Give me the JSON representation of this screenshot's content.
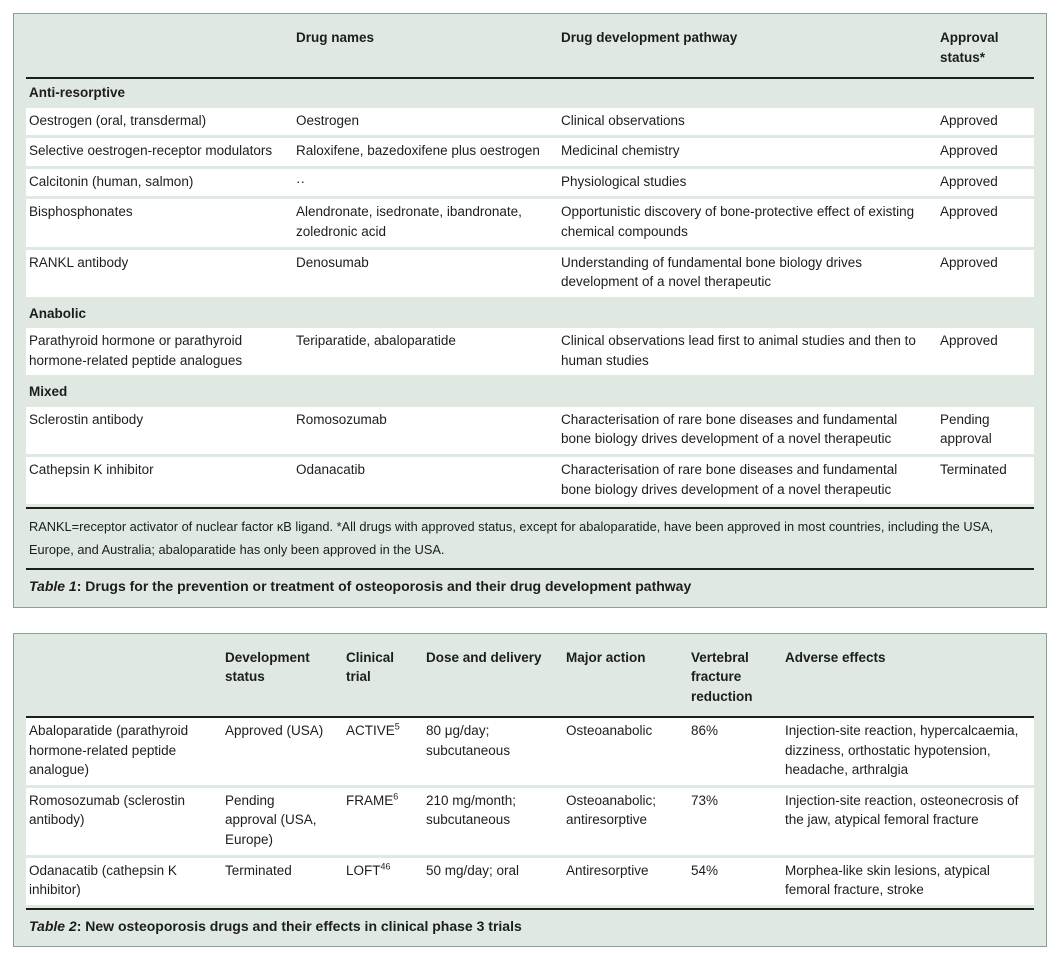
{
  "colors": {
    "panel_background": "#dfe9e2",
    "panel_border": "#8ba096",
    "row_background": "#ffffff",
    "rule": "#1d1d1b",
    "text": "#1d1d1b"
  },
  "table1": {
    "columns": [
      "",
      "Drug names",
      "Drug development pathway",
      "Approval status*"
    ],
    "sections": [
      {
        "title": "Anti-resorptive",
        "rows": [
          {
            "category": "Oestrogen (oral, transdermal)",
            "drugs": "Oestrogen",
            "pathway": "Clinical observations",
            "status": "Approved"
          },
          {
            "category": "Selective oestrogen-receptor modulators",
            "drugs": "Raloxifene, bazedoxifene plus oestrogen",
            "pathway": "Medicinal chemistry",
            "status": "Approved"
          },
          {
            "category": "Calcitonin (human, salmon)",
            "drugs": "··",
            "pathway": "Physiological studies",
            "status": "Approved"
          },
          {
            "category": "Bisphosphonates",
            "drugs": "Alendronate, isedronate, ibandronate, zoledronic acid",
            "pathway": "Opportunistic discovery of bone-protective effect of existing chemical compounds",
            "status": "Approved"
          },
          {
            "category": "RANKL antibody",
            "drugs": "Denosumab",
            "pathway": "Understanding of fundamental bone biology drives development of a novel therapeutic",
            "status": "Approved"
          }
        ]
      },
      {
        "title": "Anabolic",
        "rows": [
          {
            "category": "Parathyroid hormone or parathyroid hormone-related peptide analogues",
            "drugs": "Teriparatide, abaloparatide",
            "pathway": "Clinical observations lead first to animal studies and then to human studies",
            "status": "Approved"
          }
        ]
      },
      {
        "title": "Mixed",
        "rows": [
          {
            "category": "Sclerostin antibody",
            "drugs": "Romosozumab",
            "pathway": "Characterisation of rare bone diseases and fundamental bone biology drives development of a novel therapeutic",
            "status": "Pending approval"
          },
          {
            "category": "Cathepsin K inhibitor",
            "drugs": "Odanacatib",
            "pathway": "Characterisation of rare bone diseases and fundamental bone biology drives development of a novel therapeutic",
            "status": "Terminated"
          }
        ]
      }
    ],
    "footnote": "RANKL=receptor activator of nuclear factor κB ligand. *All drugs with approved status, except for abaloparatide, have been approved in most countries, including the USA, Europe, and Australia; abaloparatide has only been approved in the USA.",
    "caption_label": "Table 1",
    "caption_text": ": Drugs for the prevention or treatment of osteoporosis and their drug development pathway"
  },
  "table2": {
    "columns": [
      "",
      "Development status",
      "Clinical trial",
      "Dose and delivery",
      "Major action",
      "Vertebral fracture reduction",
      "Adverse effects"
    ],
    "rows": [
      {
        "drug": "Abaloparatide (parathyroid hormone-related peptide analogue)",
        "status": "Approved (USA)",
        "trial": "ACTIVE",
        "trial_ref": "5",
        "dose": "80 μg/day; subcutaneous",
        "action": "Osteoanabolic",
        "reduction": "86%",
        "adverse": "Injection-site reaction, hypercalcaemia, dizziness, orthostatic hypotension, headache, arthralgia"
      },
      {
        "drug": "Romosozumab (sclerostin antibody)",
        "status": "Pending approval (USA, Europe)",
        "trial": "FRAME",
        "trial_ref": "6",
        "dose": "210 mg/month; subcutaneous",
        "action": "Osteoanabolic; antiresorptive",
        "reduction": "73%",
        "adverse": "Injection-site reaction, osteonecrosis of the jaw, atypical femoral fracture"
      },
      {
        "drug": "Odanacatib (cathepsin K inhibitor)",
        "status": "Terminated",
        "trial": "LOFT",
        "trial_ref": "46",
        "dose": "50 mg/day; oral",
        "action": "Antiresorptive",
        "reduction": "54%",
        "adverse": "Morphea-like skin lesions, atypical femoral fracture, stroke"
      }
    ],
    "caption_label": "Table 2",
    "caption_text": ": New osteoporosis drugs and their effects in clinical phase 3 trials"
  }
}
